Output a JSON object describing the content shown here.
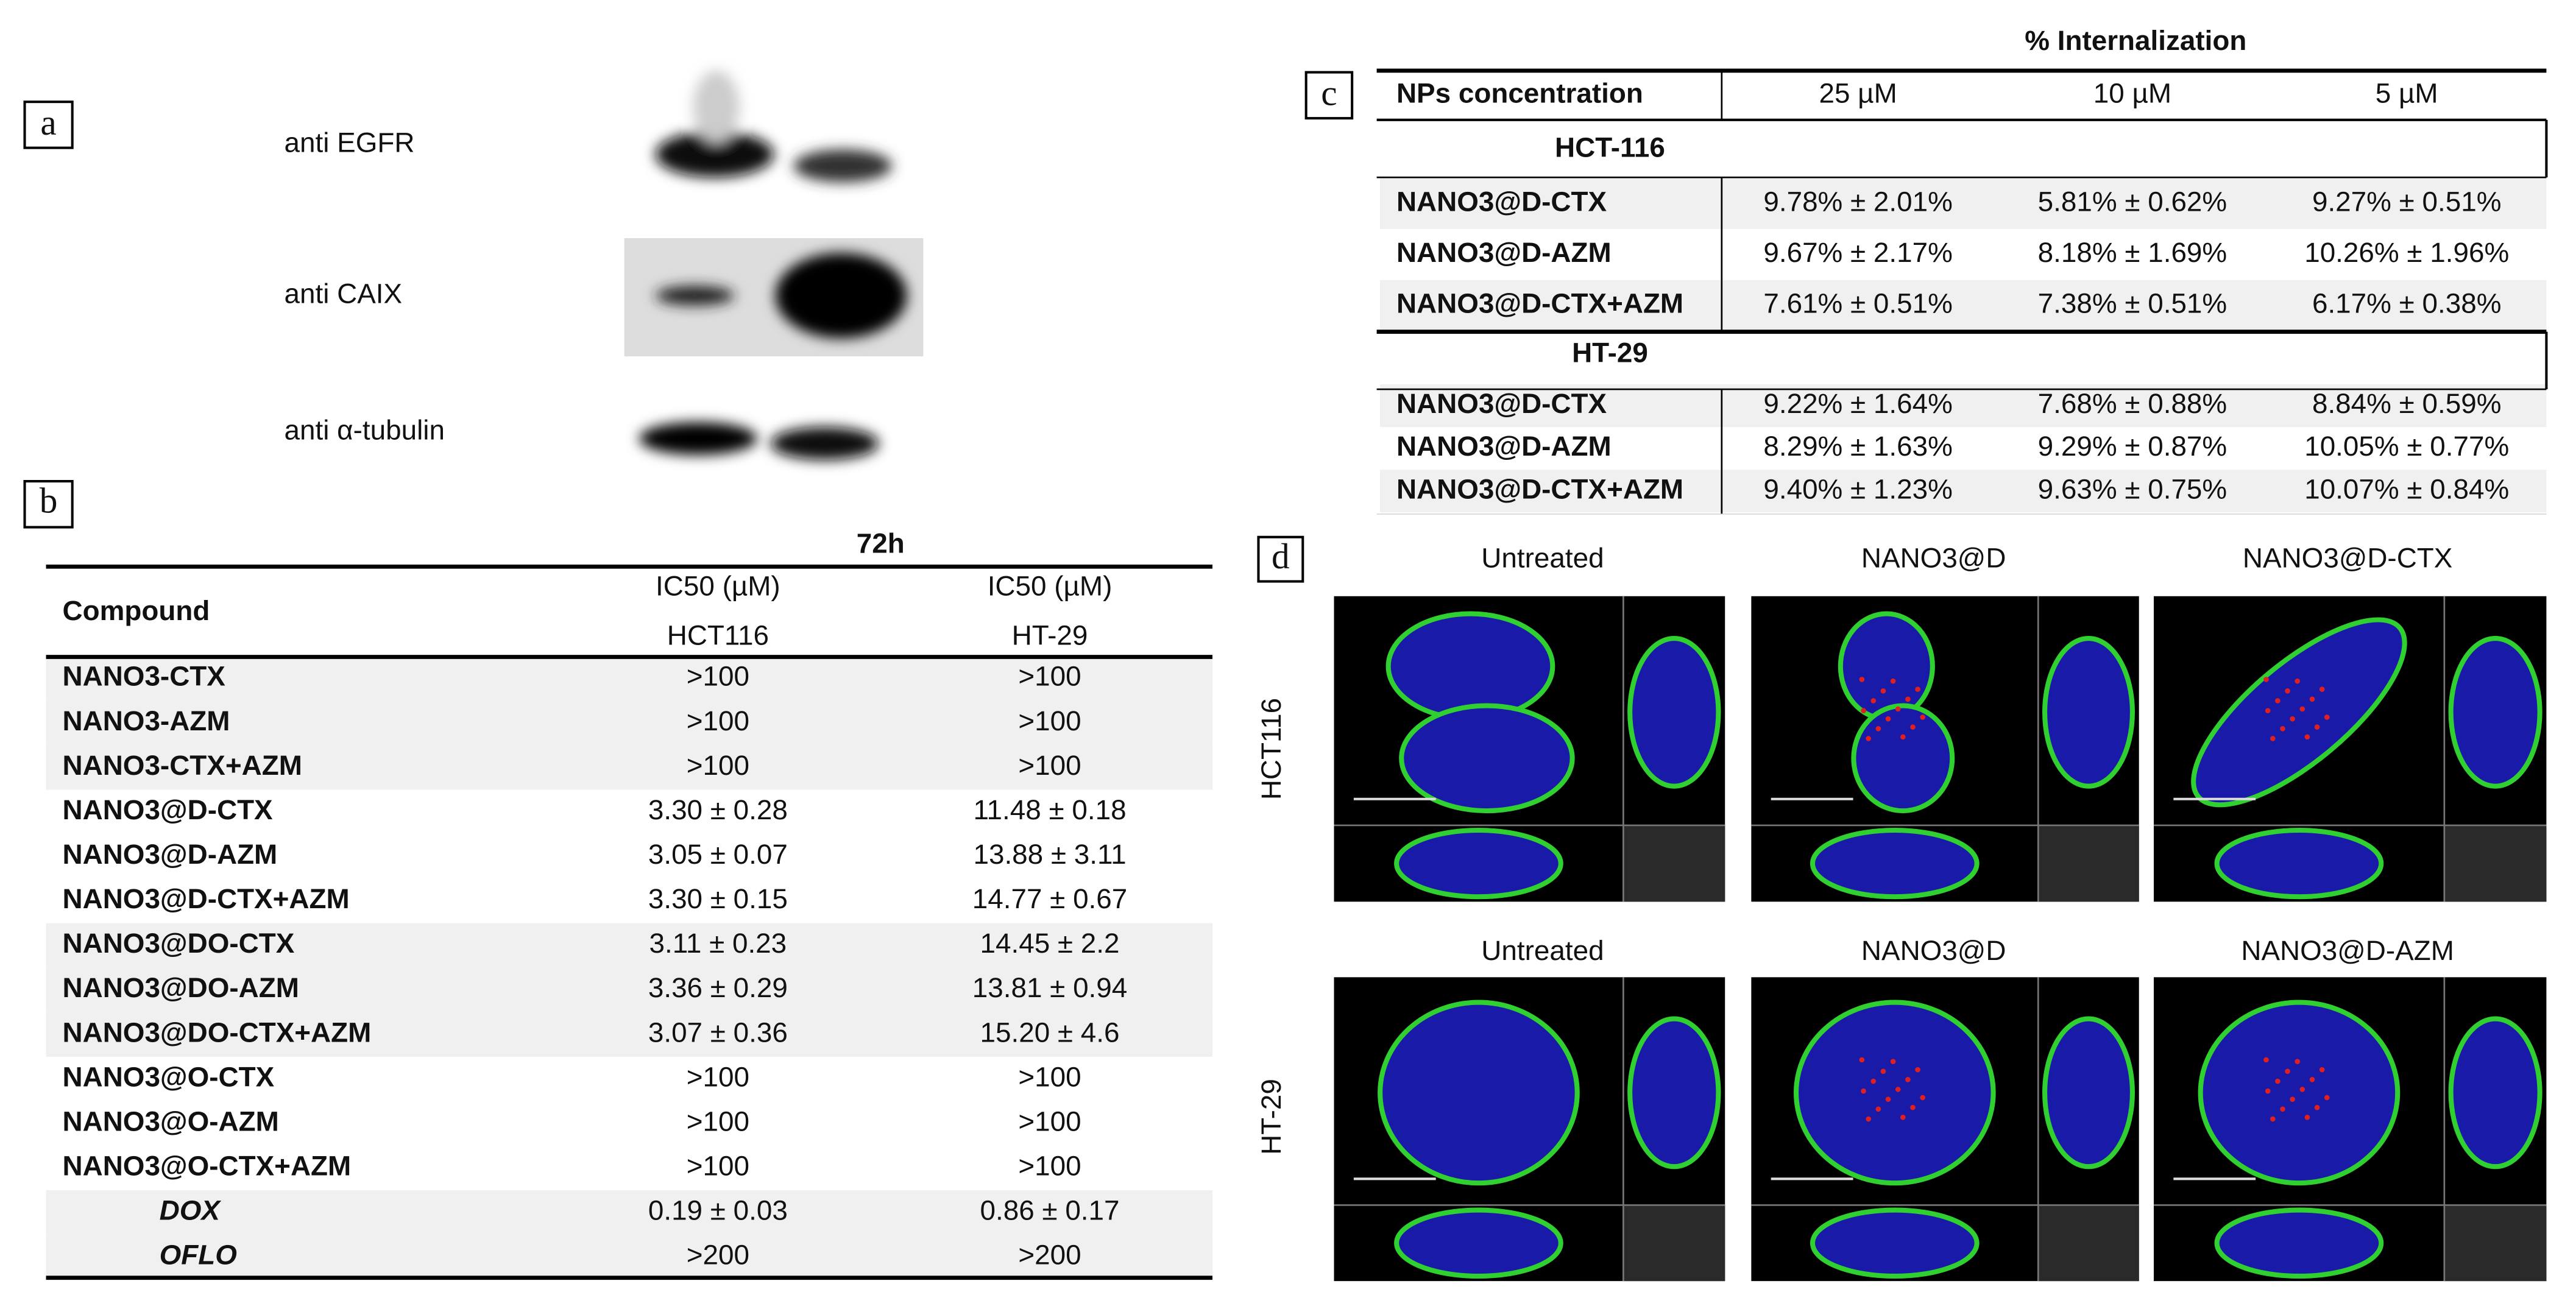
{
  "panel_a": {
    "label": "a",
    "bands": [
      "anti EGFR",
      "anti CAIX",
      "anti α-tubulin"
    ]
  },
  "panel_b": {
    "label": "b",
    "group_header": "72h",
    "header": {
      "compound": "Compound",
      "col1": [
        "IC50 (µM)",
        "HCT116"
      ],
      "col2": [
        "IC50 (µM)",
        "HT-29"
      ]
    },
    "rows": [
      [
        "NANO3-CTX",
        ">100",
        ">100"
      ],
      [
        "NANO3-AZM",
        ">100",
        ">100"
      ],
      [
        "NANO3-CTX+AZM",
        ">100",
        ">100"
      ],
      [
        "NANO3@D-CTX",
        "3.30 ± 0.28",
        "11.48 ± 0.18"
      ],
      [
        "NANO3@D-AZM",
        "3.05 ± 0.07",
        "13.88 ± 3.11"
      ],
      [
        "NANO3@D-CTX+AZM",
        "3.30 ± 0.15",
        "14.77 ± 0.67"
      ],
      [
        "NANO3@DO-CTX",
        "3.11 ± 0.23",
        "14.45 ± 2.2"
      ],
      [
        "NANO3@DO-AZM",
        "3.36 ± 0.29",
        "13.81 ± 0.94"
      ],
      [
        "NANO3@DO-CTX+AZM",
        "3.07 ± 0.36",
        "15.20 ± 4.6"
      ],
      [
        "NANO3@O-CTX",
        ">100",
        ">100"
      ],
      [
        "NANO3@O-AZM",
        ">100",
        ">100"
      ],
      [
        "NANO3@O-CTX+AZM",
        ">100",
        ">100"
      ],
      [
        "DOX",
        "0.19 ± 0.03",
        "0.86 ± 0.17"
      ],
      [
        "OFLO",
        ">200",
        ">200"
      ]
    ]
  },
  "panel_c": {
    "label": "c",
    "title": "% Internalization",
    "header": [
      "NPs concentration",
      "25 µM",
      "10 µM",
      "5 µM"
    ],
    "groups": [
      {
        "name": "HCT-116",
        "rows": [
          [
            "NANO3@D-CTX",
            "9.78% ± 2.01%",
            "5.81% ± 0.62%",
            "9.27% ± 0.51%"
          ],
          [
            "NANO3@D-AZM",
            "9.67% ± 2.17%",
            "8.18% ± 1.69%",
            "10.26% ± 1.96%"
          ],
          [
            "NANO3@D-CTX+AZM",
            "7.61% ± 0.51%",
            "7.38% ± 0.51%",
            "6.17% ± 0.38%"
          ]
        ]
      },
      {
        "name": "HT-29",
        "rows": [
          [
            "NANO3@D-CTX",
            "9.22% ± 1.64%",
            "7.68% ± 0.88%",
            "8.84% ± 0.59%"
          ],
          [
            "NANO3@D-AZM",
            "8.29% ± 1.63%",
            "9.29% ± 0.87%",
            "10.05% ± 0.77%"
          ],
          [
            "NANO3@D-CTX+AZM",
            "9.40% ± 1.23%",
            "9.63% ± 0.75%",
            "10.07% ± 0.84%"
          ]
        ]
      }
    ]
  },
  "panel_d": {
    "label": "d",
    "rows": [
      {
        "cell_line": "HCT116",
        "columns": [
          "Untreated",
          "NANO3@D",
          "NANO3@D-CTX"
        ]
      },
      {
        "cell_line": "HT-29",
        "columns": [
          "Untreated",
          "NANO3@D",
          "NANO3@D-AZM"
        ]
      }
    ]
  }
}
